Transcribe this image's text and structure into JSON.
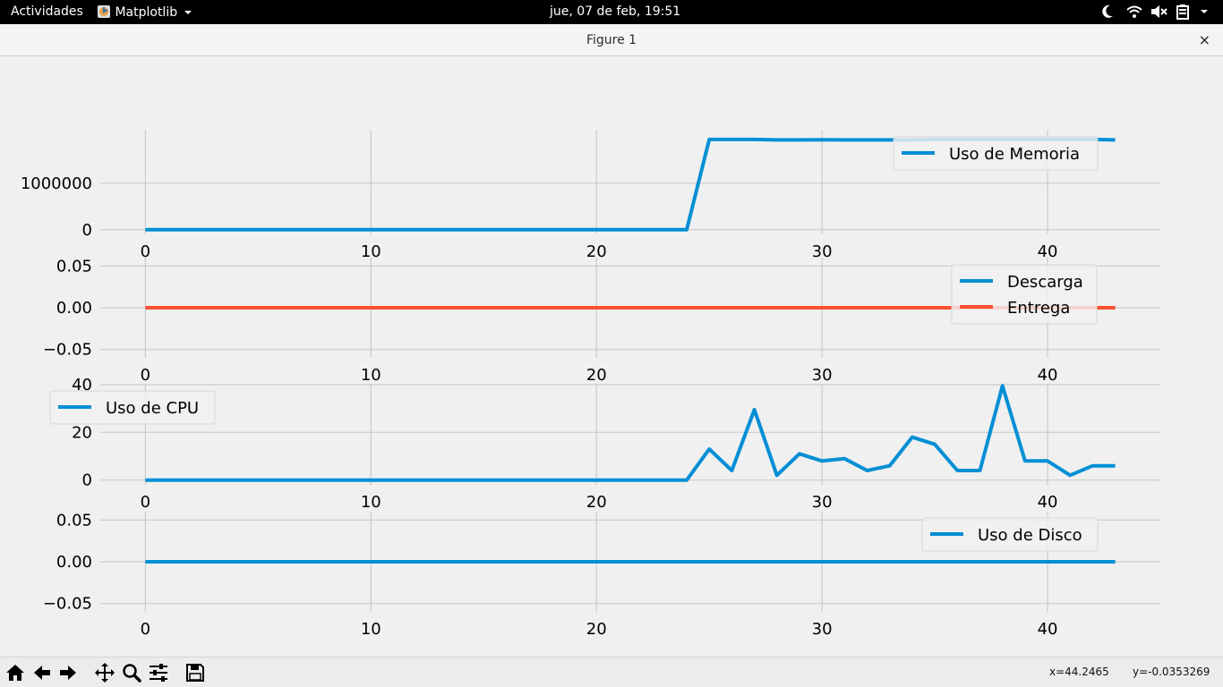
{
  "topbar": {
    "activities": "Actividades",
    "app_name": "Matplotlib",
    "datetime": "jue, 07 de feb, 19:51"
  },
  "window": {
    "title": "Figure 1",
    "close": "×"
  },
  "status": {
    "x": "x=44.2465",
    "y": "y=-0.0353269"
  },
  "colors": {
    "blue": "#008fd5",
    "red": "#fc4f30",
    "grid": "#cbcbcb",
    "background": "#f0f0f0"
  },
  "toolbar_icons": [
    "home-icon",
    "back-arrow-icon",
    "forward-arrow-icon",
    "pan-icon",
    "zoom-icon",
    "configure-subplots-icon",
    "save-icon"
  ],
  "chart_data": [
    {
      "type": "line",
      "xlim": [
        -2,
        45
      ],
      "ylim": [
        -100000,
        2150000
      ],
      "xticks": [
        "0",
        "10",
        "20",
        "30",
        "40"
      ],
      "yticks": [
        "0",
        "1000000"
      ],
      "ytick_values": [
        0,
        1000000
      ],
      "legend_position": "top-right",
      "series": [
        {
          "name": "Uso de Memoria",
          "color": "#008fd5",
          "x": [
            0,
            1,
            2,
            3,
            4,
            5,
            6,
            7,
            8,
            9,
            10,
            11,
            12,
            13,
            14,
            15,
            16,
            17,
            18,
            19,
            20,
            21,
            22,
            23,
            24,
            25,
            26,
            27,
            28,
            29,
            30,
            31,
            32,
            33,
            34,
            35,
            36,
            37,
            38,
            39,
            40,
            41,
            42,
            43
          ],
          "y": [
            0,
            0,
            0,
            0,
            0,
            0,
            0,
            0,
            0,
            0,
            0,
            0,
            0,
            0,
            0,
            0,
            0,
            0,
            0,
            0,
            0,
            0,
            0,
            0,
            0,
            1940000,
            1940000,
            1940000,
            1930000,
            1930000,
            1935000,
            1930000,
            1930000,
            1930000,
            1930000,
            1940000,
            1940000,
            1940000,
            1940000,
            1940000,
            1940000,
            1940000,
            1940000,
            1930000
          ]
        }
      ]
    },
    {
      "type": "line",
      "xlim": [
        -2,
        45
      ],
      "ylim": [
        -0.06,
        0.06
      ],
      "xticks": [
        "0",
        "10",
        "20",
        "30",
        "40"
      ],
      "yticks": [
        "0.05",
        "0.00",
        "−0.05"
      ],
      "ytick_values": [
        0.05,
        0,
        -0.05
      ],
      "legend_position": "right",
      "series": [
        {
          "name": "Descarga",
          "color": "#008fd5",
          "x": [
            0,
            1,
            2,
            3,
            4,
            5,
            6,
            7,
            8,
            9,
            10,
            11,
            12,
            13,
            14,
            15,
            16,
            17,
            18,
            19,
            20,
            21,
            22,
            23,
            24,
            25,
            26,
            27,
            28,
            29,
            30,
            31,
            32,
            33,
            34,
            35,
            36,
            37,
            38,
            39,
            40,
            41,
            42,
            43
          ],
          "y": [
            0,
            0,
            0,
            0,
            0,
            0,
            0,
            0,
            0,
            0,
            0,
            0,
            0,
            0,
            0,
            0,
            0,
            0,
            0,
            0,
            0,
            0,
            0,
            0,
            0,
            0,
            0,
            0,
            0,
            0,
            0,
            0,
            0,
            0,
            0,
            0,
            0,
            0,
            0,
            0,
            0,
            0,
            0,
            0
          ]
        },
        {
          "name": "Entrega",
          "color": "#fc4f30",
          "x": [
            0,
            1,
            2,
            3,
            4,
            5,
            6,
            7,
            8,
            9,
            10,
            11,
            12,
            13,
            14,
            15,
            16,
            17,
            18,
            19,
            20,
            21,
            22,
            23,
            24,
            25,
            26,
            27,
            28,
            29,
            30,
            31,
            32,
            33,
            34,
            35,
            36,
            37,
            38,
            39,
            40,
            41,
            42,
            43
          ],
          "y": [
            0,
            0,
            0,
            0,
            0,
            0,
            0,
            0,
            0,
            0,
            0,
            0,
            0,
            0,
            0,
            0,
            0,
            0,
            0,
            0,
            0,
            0,
            0,
            0,
            0,
            0,
            0,
            0,
            0,
            0,
            0,
            0,
            0,
            0,
            0,
            0,
            0,
            0,
            0,
            0,
            0,
            0,
            0,
            0
          ]
        }
      ]
    },
    {
      "type": "line",
      "xlim": [
        -2,
        45
      ],
      "ylim": [
        -2,
        40
      ],
      "xticks": [
        "0",
        "10",
        "20",
        "30",
        "40"
      ],
      "yticks": [
        "40",
        "20",
        "0"
      ],
      "ytick_values": [
        40,
        20,
        0
      ],
      "legend_position": "top-left",
      "series": [
        {
          "name": "Uso de CPU",
          "color": "#008fd5",
          "x": [
            0,
            1,
            2,
            3,
            4,
            5,
            6,
            7,
            8,
            9,
            10,
            11,
            12,
            13,
            14,
            15,
            16,
            17,
            18,
            19,
            20,
            21,
            22,
            23,
            24,
            25,
            26,
            27,
            28,
            29,
            30,
            31,
            32,
            33,
            34,
            35,
            36,
            37,
            38,
            39,
            40,
            41,
            42,
            43
          ],
          "y": [
            0,
            0,
            0,
            0,
            0,
            0,
            0,
            0,
            0,
            0,
            0,
            0,
            0,
            0,
            0,
            0,
            0,
            0,
            0,
            0,
            0,
            0,
            0,
            0,
            0,
            13,
            4,
            29.5,
            2,
            11,
            8,
            9,
            4,
            6,
            18,
            15,
            4,
            4,
            39.5,
            8,
            8,
            2,
            6,
            6
          ]
        }
      ]
    },
    {
      "type": "line",
      "xlim": [
        -2,
        45
      ],
      "ylim": [
        -0.06,
        0.06
      ],
      "xticks": [
        "0",
        "10",
        "20",
        "30",
        "40"
      ],
      "yticks": [
        "0.05",
        "0.00",
        "−0.05"
      ],
      "ytick_values": [
        0.05,
        0,
        -0.05
      ],
      "legend_position": "top-right",
      "series": [
        {
          "name": "Uso de Disco",
          "color": "#008fd5",
          "x": [
            0,
            1,
            2,
            3,
            4,
            5,
            6,
            7,
            8,
            9,
            10,
            11,
            12,
            13,
            14,
            15,
            16,
            17,
            18,
            19,
            20,
            21,
            22,
            23,
            24,
            25,
            26,
            27,
            28,
            29,
            30,
            31,
            32,
            33,
            34,
            35,
            36,
            37,
            38,
            39,
            40,
            41,
            42,
            43
          ],
          "y": [
            0,
            0,
            0,
            0,
            0,
            0,
            0,
            0,
            0,
            0,
            0,
            0,
            0,
            0,
            0,
            0,
            0,
            0,
            0,
            0,
            0,
            0,
            0,
            0,
            0,
            0,
            0,
            0,
            0,
            0,
            0,
            0,
            0,
            0,
            0,
            0,
            0,
            0,
            0,
            0,
            0,
            0,
            0,
            0
          ]
        }
      ]
    }
  ]
}
